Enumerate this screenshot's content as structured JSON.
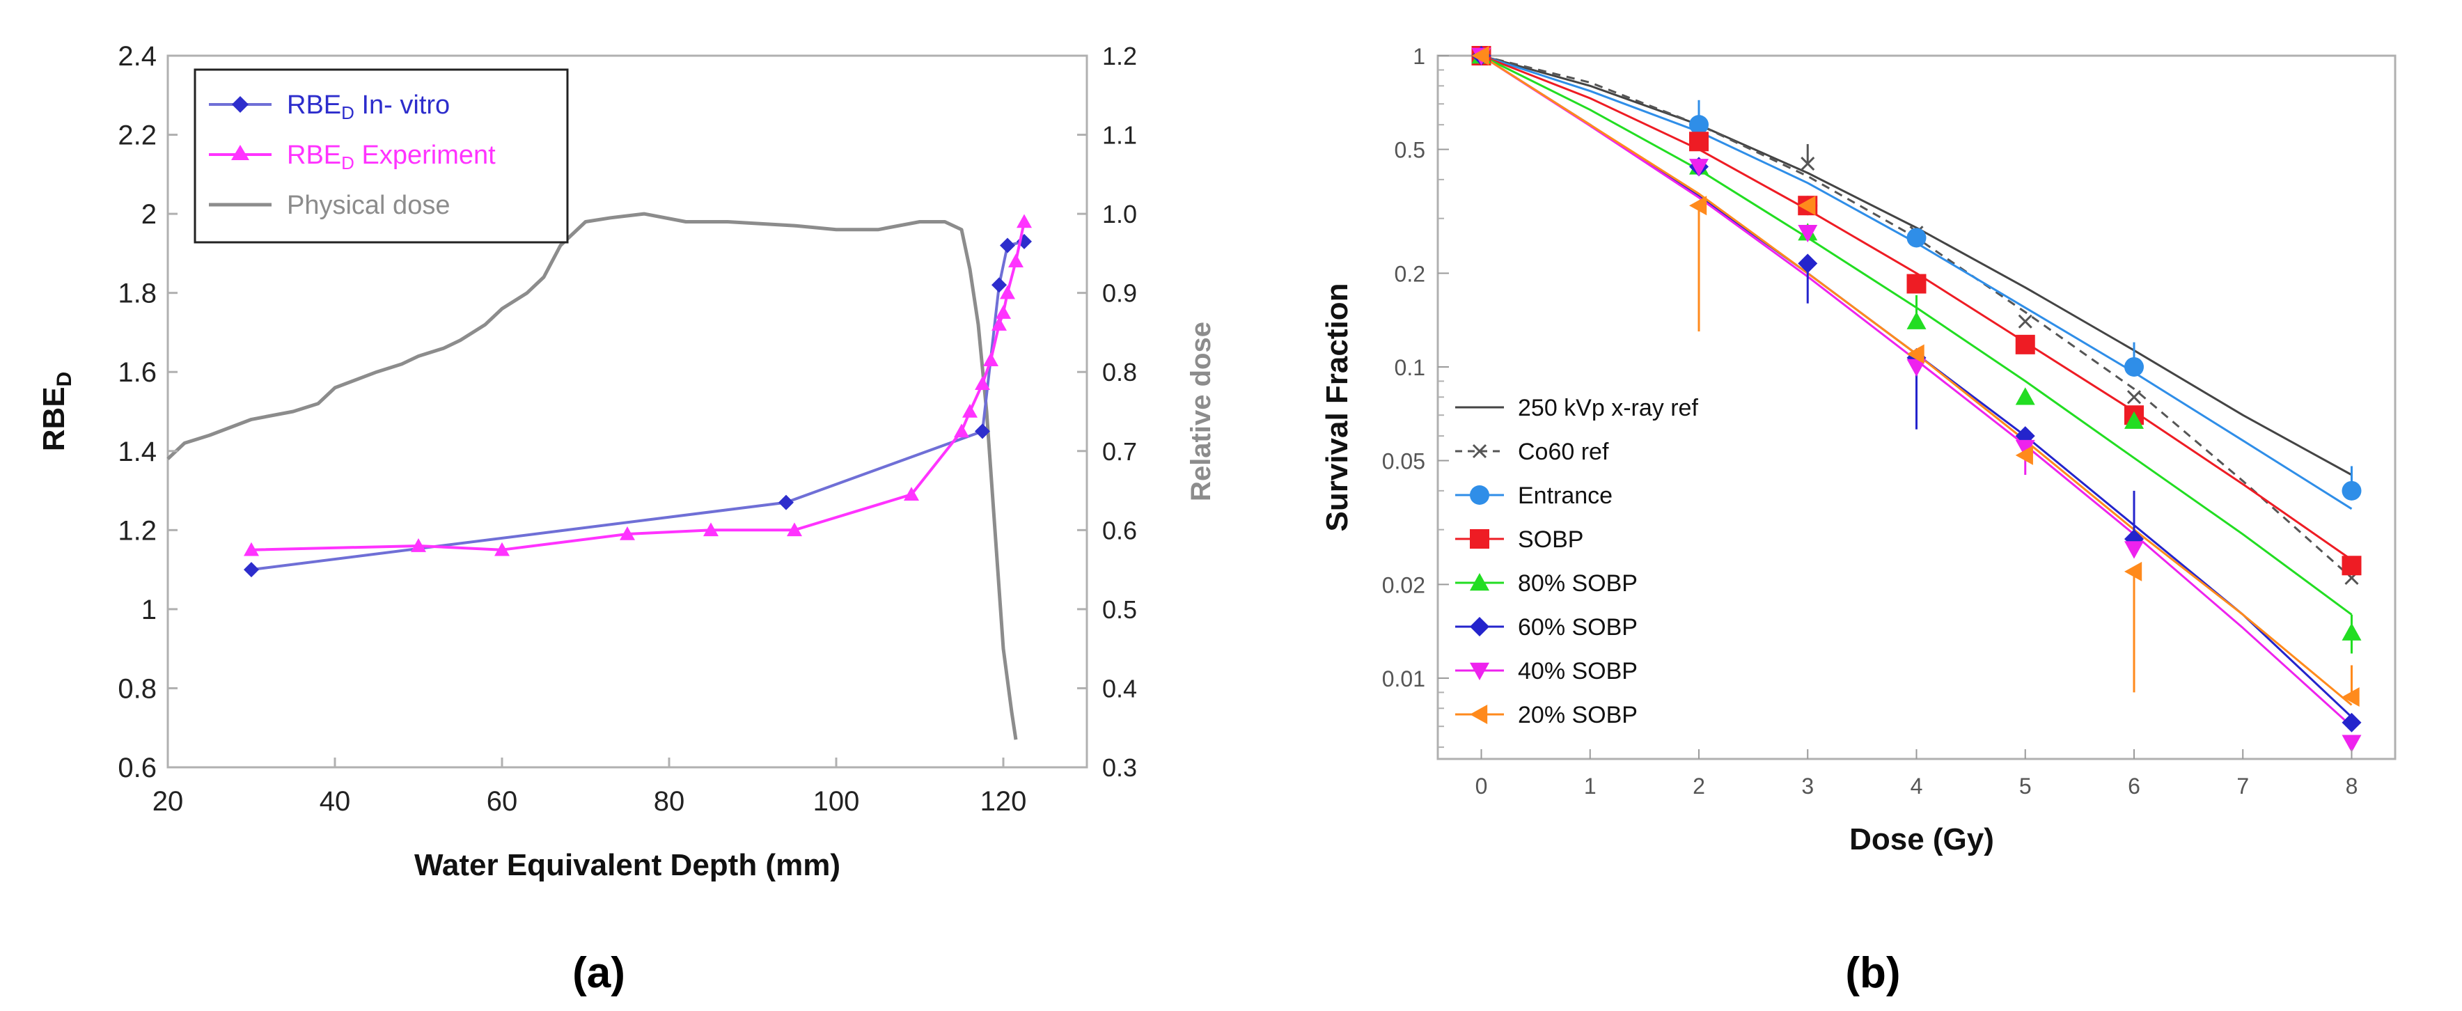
{
  "colors": {
    "invitro": "#2d2dcc",
    "invitro_line": "#6f6fd6",
    "experiment": "#ff33ff",
    "physical": "#8c8c8c",
    "axis_text": "#222222",
    "gray_axis": "#8c8c8c",
    "x250": "#444444",
    "co60": "#555555",
    "entrance": "#2f8ee8",
    "sobp": "#ee1c24",
    "p80": "#22dd22",
    "p60": "#2424cc",
    "p40": "#ee22ee",
    "p20": "#ff8a1c"
  },
  "chart_data": [
    {
      "panel_label": "(a)",
      "type": "line",
      "xlabel": "Water Equivalent Depth (mm)",
      "ylabel_main": "RBE",
      "ylabel_sub": "D",
      "y2label": "Relative dose",
      "xlim": [
        20,
        130
      ],
      "ylim": [
        0.6,
        2.4
      ],
      "y2lim": [
        0.3,
        1.2
      ],
      "x_ticks": [
        "20",
        "40",
        "60",
        "80",
        "100",
        "120"
      ],
      "x_tick_values": [
        20,
        40,
        60,
        80,
        100,
        120
      ],
      "y_ticks": [
        "0.6",
        "0.8",
        "1",
        "1.2",
        "1.4",
        "1.6",
        "1.8",
        "2",
        "2.2",
        "2.4"
      ],
      "y_tick_values": [
        0.6,
        0.8,
        1.0,
        1.2,
        1.4,
        1.6,
        1.8,
        2.0,
        2.2,
        2.4
      ],
      "y2_ticks": [
        "0.3",
        "0.4",
        "0.5",
        "0.6",
        "0.7",
        "0.8",
        "0.9",
        "1.0",
        "1.1",
        "1.2"
      ],
      "y2_tick_values": [
        0.3,
        0.4,
        0.5,
        0.6,
        0.7,
        0.8,
        0.9,
        1.0,
        1.1,
        1.2
      ],
      "legend": [
        {
          "main": "RBE",
          "sub": "D",
          "rest": " In- vitro",
          "series": "invitro"
        },
        {
          "main": "RBE",
          "sub": "D",
          "rest": " Experiment",
          "series": "experiment"
        },
        {
          "main": "Physical dose",
          "sub": "",
          "rest": "",
          "series": "physical"
        }
      ],
      "series": [
        {
          "name": "RBE_D In- vitro",
          "key": "invitro",
          "axis": "left",
          "marker": "diamond",
          "x": [
            30,
            94,
            117.5,
            119.5,
            120.5,
            122.5
          ],
          "y": [
            1.1,
            1.27,
            1.45,
            1.82,
            1.92,
            1.93
          ]
        },
        {
          "name": "RBE_D Experiment",
          "key": "experiment",
          "axis": "left",
          "marker": "triangle",
          "x": [
            30,
            50,
            60,
            75,
            85,
            95,
            109,
            115,
            116,
            117.5,
            118.5,
            119.5,
            120,
            120.5,
            121.5,
            122.5
          ],
          "y": [
            1.15,
            1.16,
            1.15,
            1.19,
            1.2,
            1.2,
            1.29,
            1.45,
            1.5,
            1.57,
            1.63,
            1.72,
            1.75,
            1.8,
            1.88,
            1.98
          ]
        },
        {
          "name": "Physical dose",
          "key": "physical",
          "axis": "right",
          "marker": "none",
          "x": [
            20,
            22,
            25,
            30,
            35,
            38,
            40,
            45,
            48,
            50,
            53,
            55,
            58,
            60,
            63,
            65,
            67,
            70,
            73,
            77,
            82,
            87,
            95,
            100,
            105,
            110,
            113,
            115,
            116,
            117,
            118,
            119,
            120,
            121,
            121.5
          ],
          "y": [
            0.69,
            0.71,
            0.72,
            0.74,
            0.75,
            0.76,
            0.78,
            0.8,
            0.81,
            0.82,
            0.83,
            0.84,
            0.86,
            0.88,
            0.9,
            0.92,
            0.96,
            0.99,
            0.995,
            1.0,
            0.99,
            0.99,
            0.985,
            0.98,
            0.98,
            0.99,
            0.99,
            0.98,
            0.93,
            0.86,
            0.75,
            0.6,
            0.45,
            0.37,
            0.335
          ]
        }
      ]
    },
    {
      "panel_label": "(b)",
      "type": "line",
      "xlabel": "Dose (Gy)",
      "ylabel": "Survival Fraction",
      "y_scale": "log",
      "xlim": [
        -0.4,
        8.4
      ],
      "ylim": [
        0.0055,
        1.0
      ],
      "x_ticks": [
        "0",
        "1",
        "2",
        "3",
        "4",
        "5",
        "6",
        "7",
        "8"
      ],
      "x_tick_values": [
        0,
        1,
        2,
        3,
        4,
        5,
        6,
        7,
        8
      ],
      "y_ticks": [
        "1",
        "0.5",
        "0.2",
        "0.1",
        "0.05",
        "0.02",
        "0.01"
      ],
      "y_tick_values": [
        1,
        0.5,
        0.2,
        0.1,
        0.05,
        0.02,
        0.01
      ],
      "legend": [
        {
          "label": "250 kVp x-ray ref",
          "series": "x250",
          "marker": "none",
          "dash": false
        },
        {
          "label": "Co60 ref",
          "series": "co60",
          "marker": "x",
          "dash": true
        },
        {
          "label": "Entrance",
          "series": "entrance",
          "marker": "circle",
          "dash": false
        },
        {
          "label": "SOBP",
          "series": "sobp",
          "marker": "square",
          "dash": false
        },
        {
          "label": "80% SOBP",
          "series": "p80",
          "marker": "triangle",
          "dash": false
        },
        {
          "label": "60% SOBP",
          "series": "p60",
          "marker": "diamond",
          "dash": false
        },
        {
          "label": "40% SOBP",
          "series": "p40",
          "marker": "triangle-down",
          "dash": false
        },
        {
          "label": "20% SOBP",
          "series": "p20",
          "marker": "triangle-left",
          "dash": false
        }
      ],
      "fits": [
        {
          "name": "250 kVp x-ray ref",
          "key": "x250",
          "x": [
            0,
            1,
            2,
            3,
            4,
            5,
            6,
            7,
            8
          ],
          "y": [
            1.0,
            0.8,
            0.6,
            0.42,
            0.28,
            0.18,
            0.113,
            0.07,
            0.045
          ]
        },
        {
          "name": "Co60 ref",
          "key": "co60",
          "dash": true,
          "x": [
            0,
            1,
            2,
            3,
            4,
            5,
            6,
            7,
            8
          ],
          "y": [
            1.0,
            0.82,
            0.6,
            0.41,
            0.26,
            0.15,
            0.085,
            0.043,
            0.021
          ]
        },
        {
          "name": "Entrance",
          "key": "entrance",
          "x": [
            0,
            1,
            2,
            3,
            4,
            5,
            6,
            7,
            8
          ],
          "y": [
            1.0,
            0.77,
            0.57,
            0.39,
            0.25,
            0.155,
            0.096,
            0.058,
            0.035
          ]
        },
        {
          "name": "SOBP",
          "key": "sobp",
          "x": [
            0,
            1,
            2,
            3,
            4,
            5,
            6,
            7,
            8
          ],
          "y": [
            1.0,
            0.73,
            0.5,
            0.32,
            0.2,
            0.12,
            0.072,
            0.042,
            0.024
          ]
        },
        {
          "name": "80% SOBP",
          "key": "p80",
          "x": [
            0,
            1,
            2,
            3,
            4,
            5,
            6,
            7,
            8
          ],
          "y": [
            1.0,
            0.67,
            0.43,
            0.26,
            0.155,
            0.09,
            0.051,
            0.029,
            0.016
          ]
        },
        {
          "name": "60% SOBP",
          "key": "p60",
          "x": [
            0,
            1,
            2,
            3,
            4,
            5,
            6,
            7,
            8
          ],
          "y": [
            1.0,
            0.6,
            0.355,
            0.2,
            0.11,
            0.06,
            0.031,
            0.016,
            0.0075
          ]
        },
        {
          "name": "40% SOBP",
          "key": "p40",
          "x": [
            0,
            1,
            2,
            3,
            4,
            5,
            6,
            7,
            8
          ],
          "y": [
            1.0,
            0.595,
            0.35,
            0.195,
            0.105,
            0.056,
            0.029,
            0.0145,
            0.007
          ]
        },
        {
          "name": "20% SOBP",
          "key": "p20",
          "x": [
            0,
            1,
            2,
            3,
            4,
            5,
            6,
            7,
            8
          ],
          "y": [
            1.0,
            0.6,
            0.36,
            0.2,
            0.11,
            0.058,
            0.03,
            0.016,
            0.0082
          ]
        }
      ],
      "points": [
        {
          "name": "Co60 ref",
          "key": "co60",
          "marker": "x",
          "x": [
            0,
            2,
            3,
            4,
            5,
            6,
            8
          ],
          "y": [
            1.0,
            0.6,
            0.45,
            0.27,
            0.14,
            0.08,
            0.021
          ],
          "err_hi": [
            null,
            null,
            0.52,
            null,
            null,
            null,
            null
          ],
          "err_lo": [
            null,
            null,
            null,
            null,
            null,
            null,
            null
          ]
        },
        {
          "name": "Entrance",
          "key": "entrance",
          "marker": "circle",
          "x": [
            0,
            2,
            3,
            4,
            6,
            8
          ],
          "y": [
            1.0,
            0.6,
            0.33,
            0.26,
            0.1,
            0.04
          ],
          "err_hi": [
            null,
            0.72,
            null,
            null,
            0.12,
            0.048
          ],
          "err_lo": [
            null,
            null,
            null,
            null,
            null,
            null
          ]
        },
        {
          "name": "SOBP",
          "key": "sobp",
          "marker": "square",
          "x": [
            0,
            2,
            3,
            4,
            5,
            6,
            8
          ],
          "y": [
            1.0,
            0.53,
            0.33,
            0.185,
            0.118,
            0.07,
            0.023
          ],
          "err_hi": [
            null,
            null,
            null,
            null,
            null,
            null,
            null
          ],
          "err_lo": [
            null,
            null,
            null,
            null,
            null,
            null,
            null
          ]
        },
        {
          "name": "80% SOBP",
          "key": "p80",
          "marker": "triangle",
          "x": [
            0,
            2,
            3,
            4,
            5,
            6,
            8
          ],
          "y": [
            1.0,
            0.44,
            0.27,
            0.14,
            0.08,
            0.067,
            0.014
          ],
          "err_hi": [
            null,
            null,
            null,
            0.17,
            null,
            null,
            0.016
          ],
          "err_lo": [
            null,
            null,
            null,
            null,
            null,
            null,
            0.012
          ]
        },
        {
          "name": "60% SOBP",
          "key": "p60",
          "marker": "diamond",
          "x": [
            0,
            2,
            3,
            4,
            5,
            6,
            8
          ],
          "y": [
            1.0,
            0.44,
            0.215,
            0.107,
            0.06,
            0.028,
            0.0072
          ],
          "err_hi": [
            null,
            null,
            null,
            null,
            null,
            0.04,
            null
          ],
          "err_lo": [
            null,
            null,
            0.16,
            0.063,
            null,
            null,
            null
          ]
        },
        {
          "name": "40% SOBP",
          "key": "p40",
          "marker": "triangle-down",
          "x": [
            0,
            2,
            3,
            4,
            5,
            6,
            8
          ],
          "y": [
            1.0,
            0.44,
            0.27,
            0.1,
            0.055,
            0.026,
            0.0062
          ],
          "err_hi": [
            null,
            null,
            null,
            null,
            null,
            null,
            null
          ],
          "err_lo": [
            null,
            null,
            null,
            null,
            0.045,
            null,
            null
          ]
        },
        {
          "name": "20% SOBP",
          "key": "p20",
          "marker": "triangle-left",
          "x": [
            0,
            2,
            3,
            4,
            5,
            6,
            8
          ],
          "y": [
            1.0,
            0.33,
            0.33,
            0.11,
            0.052,
            0.022,
            0.0087
          ],
          "err_hi": [
            null,
            null,
            null,
            null,
            null,
            null,
            0.011
          ],
          "err_lo": [
            null,
            0.13,
            null,
            null,
            null,
            0.009,
            null
          ]
        }
      ]
    }
  ]
}
